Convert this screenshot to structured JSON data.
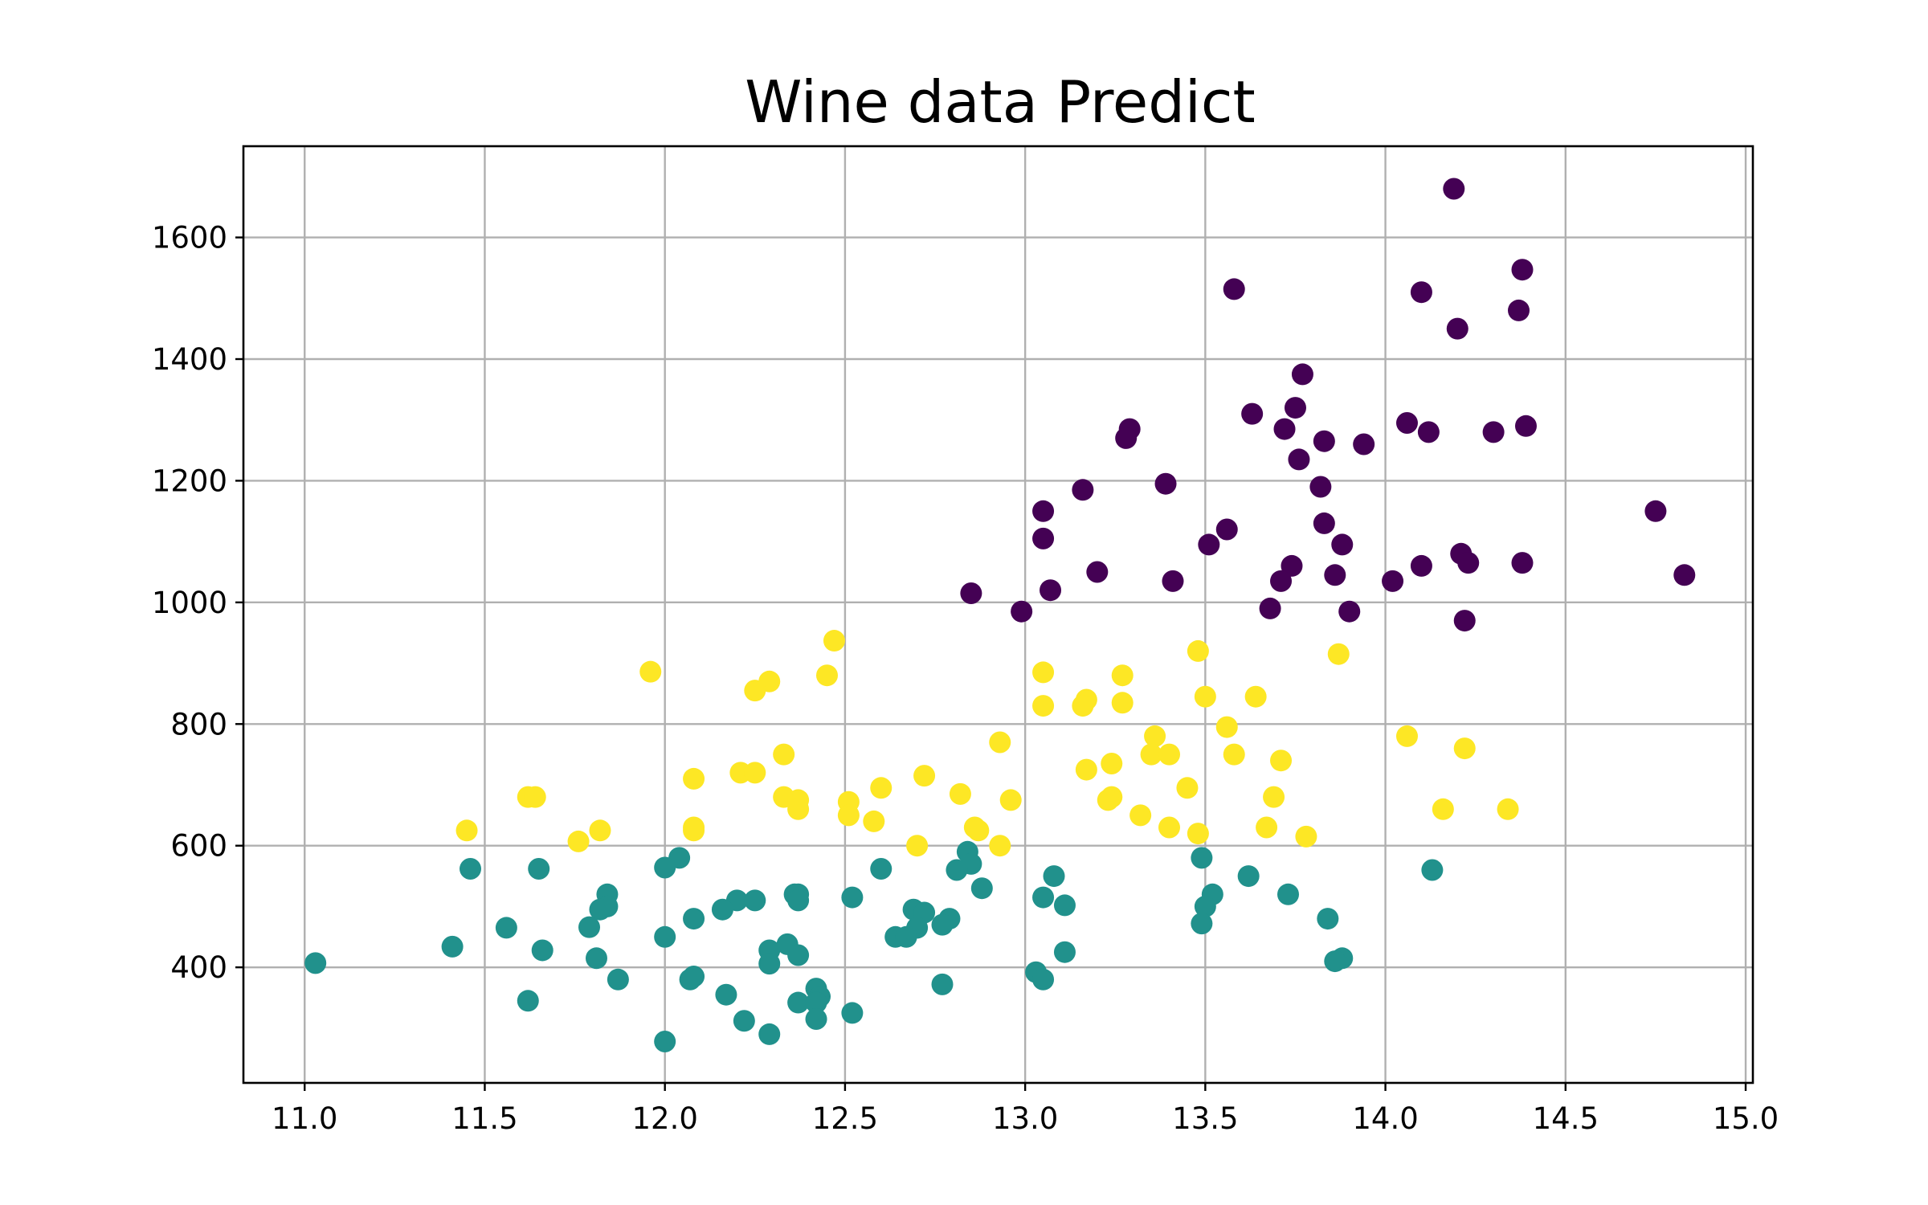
{
  "chart_data": {
    "type": "scatter",
    "title": "Wine data Predict",
    "xlabel": "",
    "ylabel": "",
    "xlim": [
      10.83,
      15.02
    ],
    "ylim": [
      210,
      1750
    ],
    "xticks": [
      11.0,
      11.5,
      12.0,
      12.5,
      13.0,
      13.5,
      14.0,
      14.5,
      15.0
    ],
    "xtick_labels": [
      "11.0",
      "11.5",
      "12.0",
      "12.5",
      "13.0",
      "13.5",
      "14.0",
      "14.5",
      "15.0"
    ],
    "yticks": [
      400,
      600,
      800,
      1000,
      1200,
      1400,
      1600
    ],
    "ytick_labels": [
      "400",
      "600",
      "800",
      "1000",
      "1200",
      "1400",
      "1600"
    ],
    "grid": true,
    "legend": "none",
    "colors": {
      "0": "#440154",
      "1": "#21918c",
      "2": "#fde725"
    },
    "points": [
      {
        "x": 14.19,
        "y": 1680,
        "c": 0
      },
      {
        "x": 14.38,
        "y": 1547,
        "c": 0
      },
      {
        "x": 13.58,
        "y": 1515,
        "c": 0
      },
      {
        "x": 14.1,
        "y": 1510,
        "c": 0
      },
      {
        "x": 14.37,
        "y": 1480,
        "c": 0
      },
      {
        "x": 14.2,
        "y": 1450,
        "c": 0
      },
      {
        "x": 13.77,
        "y": 1375,
        "c": 0
      },
      {
        "x": 13.75,
        "y": 1320,
        "c": 0
      },
      {
        "x": 13.63,
        "y": 1310,
        "c": 0
      },
      {
        "x": 14.06,
        "y": 1295,
        "c": 0
      },
      {
        "x": 14.39,
        "y": 1290,
        "c": 0
      },
      {
        "x": 13.29,
        "y": 1285,
        "c": 0
      },
      {
        "x": 13.72,
        "y": 1285,
        "c": 0
      },
      {
        "x": 14.12,
        "y": 1280,
        "c": 0
      },
      {
        "x": 14.3,
        "y": 1280,
        "c": 0
      },
      {
        "x": 13.28,
        "y": 1270,
        "c": 0
      },
      {
        "x": 13.83,
        "y": 1265,
        "c": 0
      },
      {
        "x": 13.94,
        "y": 1260,
        "c": 0
      },
      {
        "x": 13.76,
        "y": 1235,
        "c": 0
      },
      {
        "x": 13.39,
        "y": 1195,
        "c": 0
      },
      {
        "x": 13.82,
        "y": 1190,
        "c": 0
      },
      {
        "x": 13.16,
        "y": 1185,
        "c": 0
      },
      {
        "x": 14.75,
        "y": 1150,
        "c": 0
      },
      {
        "x": 13.05,
        "y": 1150,
        "c": 0
      },
      {
        "x": 13.83,
        "y": 1130,
        "c": 0
      },
      {
        "x": 13.56,
        "y": 1120,
        "c": 0
      },
      {
        "x": 13.05,
        "y": 1105,
        "c": 0
      },
      {
        "x": 13.51,
        "y": 1095,
        "c": 0
      },
      {
        "x": 13.88,
        "y": 1095,
        "c": 0
      },
      {
        "x": 14.21,
        "y": 1080,
        "c": 0
      },
      {
        "x": 14.23,
        "y": 1065,
        "c": 0
      },
      {
        "x": 14.38,
        "y": 1065,
        "c": 0
      },
      {
        "x": 13.74,
        "y": 1060,
        "c": 0
      },
      {
        "x": 14.1,
        "y": 1060,
        "c": 0
      },
      {
        "x": 13.2,
        "y": 1050,
        "c": 0
      },
      {
        "x": 13.86,
        "y": 1045,
        "c": 0
      },
      {
        "x": 14.83,
        "y": 1045,
        "c": 0
      },
      {
        "x": 13.41,
        "y": 1035,
        "c": 0
      },
      {
        "x": 13.71,
        "y": 1035,
        "c": 0
      },
      {
        "x": 14.02,
        "y": 1035,
        "c": 0
      },
      {
        "x": 13.07,
        "y": 1020,
        "c": 0
      },
      {
        "x": 12.85,
        "y": 1015,
        "c": 0
      },
      {
        "x": 13.68,
        "y": 990,
        "c": 0
      },
      {
        "x": 12.99,
        "y": 985,
        "c": 0
      },
      {
        "x": 13.9,
        "y": 985,
        "c": 0
      },
      {
        "x": 14.22,
        "y": 970,
        "c": 0
      },
      {
        "x": 12.47,
        "y": 937,
        "c": 2
      },
      {
        "x": 13.48,
        "y": 920,
        "c": 2
      },
      {
        "x": 13.87,
        "y": 915,
        "c": 2
      },
      {
        "x": 11.96,
        "y": 886,
        "c": 2
      },
      {
        "x": 13.05,
        "y": 885,
        "c": 2
      },
      {
        "x": 12.45,
        "y": 880,
        "c": 2
      },
      {
        "x": 13.27,
        "y": 880,
        "c": 2
      },
      {
        "x": 12.29,
        "y": 870,
        "c": 2
      },
      {
        "x": 12.25,
        "y": 855,
        "c": 2
      },
      {
        "x": 13.5,
        "y": 845,
        "c": 2
      },
      {
        "x": 13.64,
        "y": 845,
        "c": 2
      },
      {
        "x": 13.17,
        "y": 840,
        "c": 2
      },
      {
        "x": 13.27,
        "y": 835,
        "c": 2
      },
      {
        "x": 13.16,
        "y": 830,
        "c": 2
      },
      {
        "x": 13.05,
        "y": 830,
        "c": 2
      },
      {
        "x": 13.56,
        "y": 795,
        "c": 2
      },
      {
        "x": 14.06,
        "y": 780,
        "c": 2
      },
      {
        "x": 13.36,
        "y": 780,
        "c": 2
      },
      {
        "x": 12.93,
        "y": 770,
        "c": 2
      },
      {
        "x": 14.22,
        "y": 760,
        "c": 2
      },
      {
        "x": 12.33,
        "y": 750,
        "c": 2
      },
      {
        "x": 13.35,
        "y": 750,
        "c": 2
      },
      {
        "x": 13.4,
        "y": 750,
        "c": 2
      },
      {
        "x": 13.58,
        "y": 750,
        "c": 2
      },
      {
        "x": 13.71,
        "y": 740,
        "c": 2
      },
      {
        "x": 13.24,
        "y": 735,
        "c": 2
      },
      {
        "x": 13.17,
        "y": 725,
        "c": 2
      },
      {
        "x": 12.21,
        "y": 720,
        "c": 2
      },
      {
        "x": 12.25,
        "y": 720,
        "c": 2
      },
      {
        "x": 12.72,
        "y": 715,
        "c": 2
      },
      {
        "x": 12.08,
        "y": 710,
        "c": 2
      },
      {
        "x": 13.45,
        "y": 695,
        "c": 2
      },
      {
        "x": 12.6,
        "y": 695,
        "c": 2
      },
      {
        "x": 12.82,
        "y": 685,
        "c": 2
      },
      {
        "x": 11.62,
        "y": 680,
        "c": 2
      },
      {
        "x": 11.64,
        "y": 680,
        "c": 2
      },
      {
        "x": 12.33,
        "y": 680,
        "c": 2
      },
      {
        "x": 13.24,
        "y": 680,
        "c": 2
      },
      {
        "x": 13.69,
        "y": 680,
        "c": 2
      },
      {
        "x": 12.37,
        "y": 675,
        "c": 2
      },
      {
        "x": 12.96,
        "y": 675,
        "c": 2
      },
      {
        "x": 13.23,
        "y": 675,
        "c": 2
      },
      {
        "x": 12.51,
        "y": 672,
        "c": 2
      },
      {
        "x": 12.37,
        "y": 660,
        "c": 2
      },
      {
        "x": 14.16,
        "y": 660,
        "c": 2
      },
      {
        "x": 14.34,
        "y": 660,
        "c": 2
      },
      {
        "x": 12.51,
        "y": 650,
        "c": 2
      },
      {
        "x": 13.32,
        "y": 650,
        "c": 2
      },
      {
        "x": 12.58,
        "y": 640,
        "c": 2
      },
      {
        "x": 12.86,
        "y": 630,
        "c": 2
      },
      {
        "x": 13.4,
        "y": 630,
        "c": 2
      },
      {
        "x": 13.67,
        "y": 630,
        "c": 2
      },
      {
        "x": 12.08,
        "y": 630,
        "c": 2
      },
      {
        "x": 11.45,
        "y": 625,
        "c": 2
      },
      {
        "x": 11.82,
        "y": 625,
        "c": 2
      },
      {
        "x": 12.08,
        "y": 625,
        "c": 2
      },
      {
        "x": 12.87,
        "y": 625,
        "c": 2
      },
      {
        "x": 13.48,
        "y": 620,
        "c": 2
      },
      {
        "x": 13.78,
        "y": 615,
        "c": 2
      },
      {
        "x": 11.76,
        "y": 607,
        "c": 2
      },
      {
        "x": 12.7,
        "y": 600,
        "c": 2
      },
      {
        "x": 12.93,
        "y": 600,
        "c": 2
      },
      {
        "x": 12.84,
        "y": 590,
        "c": 1
      },
      {
        "x": 13.49,
        "y": 580,
        "c": 1
      },
      {
        "x": 12.04,
        "y": 580,
        "c": 1
      },
      {
        "x": 12.85,
        "y": 570,
        "c": 1
      },
      {
        "x": 12.0,
        "y": 564,
        "c": 1
      },
      {
        "x": 11.46,
        "y": 562,
        "c": 1
      },
      {
        "x": 11.65,
        "y": 562,
        "c": 1
      },
      {
        "x": 12.6,
        "y": 562,
        "c": 1
      },
      {
        "x": 12.81,
        "y": 560,
        "c": 1
      },
      {
        "x": 14.13,
        "y": 560,
        "c": 1
      },
      {
        "x": 13.08,
        "y": 550,
        "c": 1
      },
      {
        "x": 13.62,
        "y": 550,
        "c": 1
      },
      {
        "x": 12.88,
        "y": 530,
        "c": 1
      },
      {
        "x": 11.84,
        "y": 520,
        "c": 1
      },
      {
        "x": 12.36,
        "y": 520,
        "c": 1
      },
      {
        "x": 12.37,
        "y": 520,
        "c": 1
      },
      {
        "x": 13.52,
        "y": 520,
        "c": 1
      },
      {
        "x": 13.73,
        "y": 520,
        "c": 1
      },
      {
        "x": 12.52,
        "y": 515,
        "c": 1
      },
      {
        "x": 13.05,
        "y": 515,
        "c": 1
      },
      {
        "x": 12.2,
        "y": 510,
        "c": 1
      },
      {
        "x": 12.25,
        "y": 510,
        "c": 1
      },
      {
        "x": 12.37,
        "y": 510,
        "c": 1
      },
      {
        "x": 11.84,
        "y": 500,
        "c": 1
      },
      {
        "x": 13.11,
        "y": 502,
        "c": 1
      },
      {
        "x": 13.5,
        "y": 500,
        "c": 1
      },
      {
        "x": 11.82,
        "y": 495,
        "c": 1
      },
      {
        "x": 12.16,
        "y": 495,
        "c": 1
      },
      {
        "x": 12.69,
        "y": 495,
        "c": 1
      },
      {
        "x": 12.72,
        "y": 490,
        "c": 1
      },
      {
        "x": 12.79,
        "y": 480,
        "c": 1
      },
      {
        "x": 12.08,
        "y": 480,
        "c": 1
      },
      {
        "x": 13.84,
        "y": 480,
        "c": 1
      },
      {
        "x": 13.49,
        "y": 472,
        "c": 1
      },
      {
        "x": 12.77,
        "y": 470,
        "c": 1
      },
      {
        "x": 11.79,
        "y": 466,
        "c": 1
      },
      {
        "x": 11.56,
        "y": 465,
        "c": 1
      },
      {
        "x": 12.7,
        "y": 465,
        "c": 1
      },
      {
        "x": 12.0,
        "y": 450,
        "c": 1
      },
      {
        "x": 12.64,
        "y": 450,
        "c": 1
      },
      {
        "x": 12.67,
        "y": 450,
        "c": 1
      },
      {
        "x": 12.34,
        "y": 438,
        "c": 1
      },
      {
        "x": 11.41,
        "y": 434,
        "c": 1
      },
      {
        "x": 12.29,
        "y": 428,
        "c": 1
      },
      {
        "x": 11.66,
        "y": 428,
        "c": 1
      },
      {
        "x": 13.11,
        "y": 425,
        "c": 1
      },
      {
        "x": 12.37,
        "y": 420,
        "c": 1
      },
      {
        "x": 11.81,
        "y": 415,
        "c": 1
      },
      {
        "x": 13.88,
        "y": 415,
        "c": 1
      },
      {
        "x": 13.86,
        "y": 410,
        "c": 1
      },
      {
        "x": 11.03,
        "y": 407,
        "c": 1
      },
      {
        "x": 12.29,
        "y": 406,
        "c": 1
      },
      {
        "x": 13.03,
        "y": 392,
        "c": 1
      },
      {
        "x": 12.08,
        "y": 385,
        "c": 1
      },
      {
        "x": 11.87,
        "y": 380,
        "c": 1
      },
      {
        "x": 12.07,
        "y": 380,
        "c": 1
      },
      {
        "x": 13.05,
        "y": 380,
        "c": 1
      },
      {
        "x": 12.77,
        "y": 372,
        "c": 1
      },
      {
        "x": 12.42,
        "y": 365,
        "c": 1
      },
      {
        "x": 12.17,
        "y": 355,
        "c": 1
      },
      {
        "x": 12.43,
        "y": 352,
        "c": 1
      },
      {
        "x": 11.62,
        "y": 345,
        "c": 1
      },
      {
        "x": 12.37,
        "y": 342,
        "c": 1
      },
      {
        "x": 12.42,
        "y": 342,
        "c": 1
      },
      {
        "x": 12.52,
        "y": 325,
        "c": 1
      },
      {
        "x": 12.22,
        "y": 312,
        "c": 1
      },
      {
        "x": 12.42,
        "y": 315,
        "c": 1
      },
      {
        "x": 12.29,
        "y": 290,
        "c": 1
      },
      {
        "x": 12.0,
        "y": 278,
        "c": 1
      }
    ]
  }
}
